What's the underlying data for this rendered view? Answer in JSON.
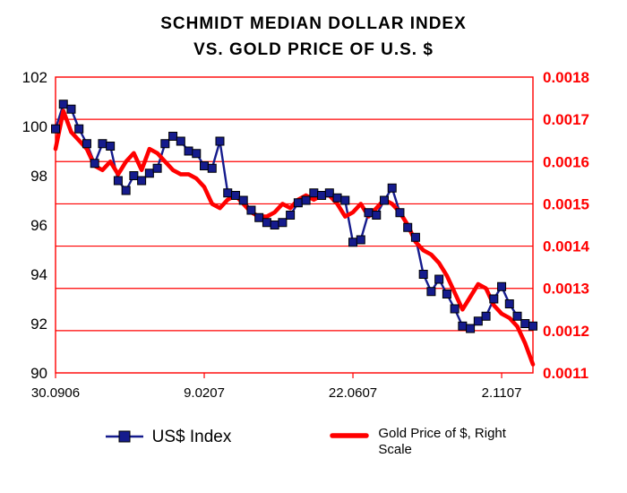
{
  "chart_data": {
    "type": "line",
    "title": "SCHMIDT MEDIAN DOLLAR INDEX",
    "subtitle": "VS. GOLD PRICE OF U.S. $",
    "frame_color": "#ff0000",
    "grid_color": "#ff0000",
    "grid_values": [
      0.0017,
      0.0016,
      0.0015,
      0.0014,
      0.0013,
      0.0012
    ],
    "left_axis": {
      "label": "US$ Index",
      "min": 90,
      "max": 102,
      "tick_values": [
        102,
        100,
        98,
        96,
        94,
        92,
        90
      ],
      "tick_labels": [
        "102",
        "100",
        "98",
        "96",
        "94",
        "92",
        "90"
      ],
      "color": "#000000"
    },
    "right_axis": {
      "label": "Gold Price of $",
      "min": 0.0011,
      "max": 0.0018,
      "tick_values": [
        0.0018,
        0.0017,
        0.0016,
        0.0015,
        0.0014,
        0.0013,
        0.0012,
        0.0011
      ],
      "tick_labels": [
        "0.0018",
        "0.0017",
        "0.0016",
        "0.0015",
        "0.0014",
        "0.0013",
        "0.0012",
        "0.0011"
      ],
      "color": "#ff0000"
    },
    "x_tick_labels": [
      "30.0906",
      "9.0207",
      "22.0607",
      "2.1107"
    ],
    "x_tick_positions": [
      0,
      19,
      38,
      57
    ],
    "series": [
      {
        "name": "US$ Index",
        "axis": "left",
        "color": "#151b8d",
        "marker": "square",
        "values": [
          99.9,
          100.9,
          100.7,
          99.9,
          99.3,
          98.5,
          99.3,
          99.2,
          97.8,
          97.4,
          98.0,
          97.8,
          98.1,
          98.3,
          99.3,
          99.6,
          99.4,
          99.0,
          98.9,
          98.4,
          98.3,
          99.4,
          97.3,
          97.2,
          97.0,
          96.6,
          96.3,
          96.1,
          96.0,
          96.1,
          96.4,
          96.9,
          97.0,
          97.3,
          97.2,
          97.3,
          97.1,
          97.0,
          95.3,
          95.4,
          96.5,
          96.4,
          97.0,
          97.5,
          96.5,
          95.9,
          95.5,
          94.0,
          93.3,
          93.8,
          93.2,
          92.6,
          91.9,
          91.8,
          92.1,
          92.3,
          93.0,
          93.5,
          92.8,
          92.3,
          92.0,
          91.9
        ]
      },
      {
        "name": "Gold Price of $, Right Scale",
        "axis": "right",
        "color": "#ff0000",
        "marker": "none",
        "values": [
          0.00163,
          0.00172,
          0.00167,
          0.00165,
          0.00163,
          0.00159,
          0.00158,
          0.0016,
          0.00157,
          0.0016,
          0.00162,
          0.00158,
          0.00163,
          0.00162,
          0.0016,
          0.00158,
          0.00157,
          0.00157,
          0.00156,
          0.00154,
          0.0015,
          0.00149,
          0.00151,
          0.00152,
          0.0015,
          0.00148,
          0.00147,
          0.00147,
          0.00148,
          0.0015,
          0.00149,
          0.00151,
          0.00152,
          0.00151,
          0.00152,
          0.00152,
          0.0015,
          0.00147,
          0.00148,
          0.0015,
          0.00147,
          0.00149,
          0.00151,
          0.0015,
          0.00148,
          0.00145,
          0.00141,
          0.00139,
          0.00138,
          0.00136,
          0.00133,
          0.00129,
          0.00125,
          0.00128,
          0.00131,
          0.0013,
          0.00126,
          0.00124,
          0.00123,
          0.00121,
          0.00117,
          0.00112
        ]
      }
    ],
    "legend": {
      "position": "bottom",
      "items": [
        "US$ Index",
        "Gold Price of $, Right Scale"
      ]
    }
  }
}
